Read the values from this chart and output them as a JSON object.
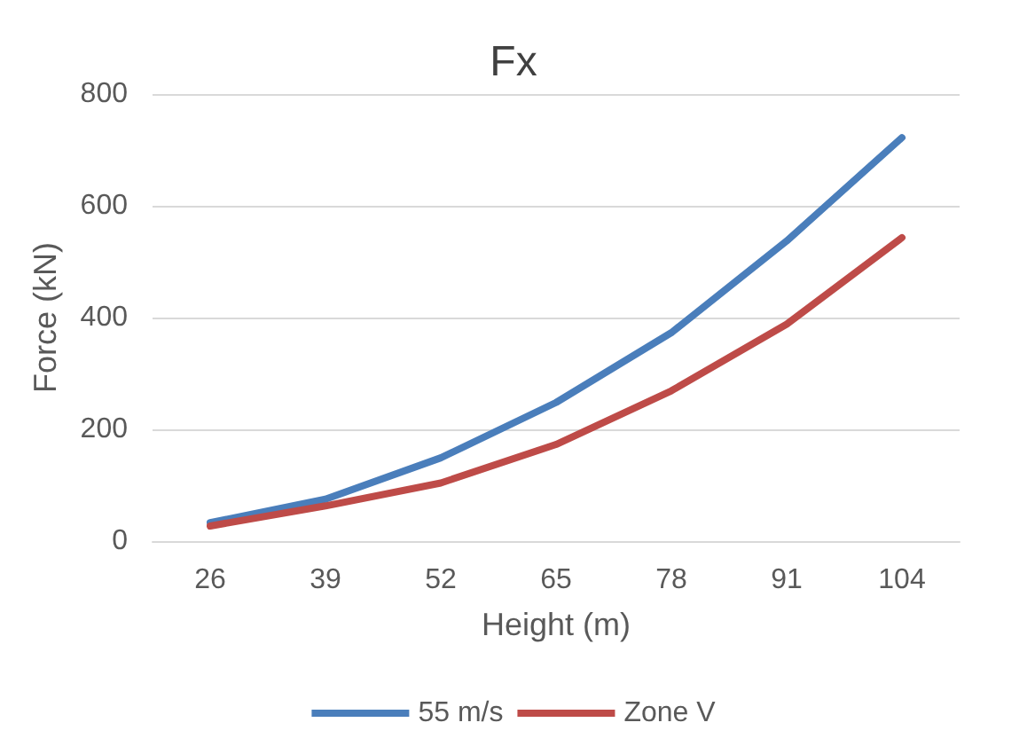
{
  "chart_data": {
    "type": "line",
    "title": "Fx",
    "xlabel": "Height (m)",
    "ylabel": "Force (kN)",
    "categories": [
      "26",
      "39",
      "52",
      "65",
      "78",
      "91",
      "104"
    ],
    "series": [
      {
        "name": "55 m/s",
        "color": "#4a7ebb",
        "values": [
          33,
          75,
          149,
          248,
          373,
          537,
          722
        ]
      },
      {
        "name": "Zone V",
        "color": "#be4b48",
        "values": [
          27,
          63,
          104,
          173,
          269,
          388,
          543
        ]
      }
    ],
    "ylim": [
      0,
      800
    ],
    "yticks": [
      0,
      200,
      400,
      600,
      800
    ],
    "grid": "y",
    "legend": "bottom",
    "marker": "none",
    "line_style": "solid"
  }
}
